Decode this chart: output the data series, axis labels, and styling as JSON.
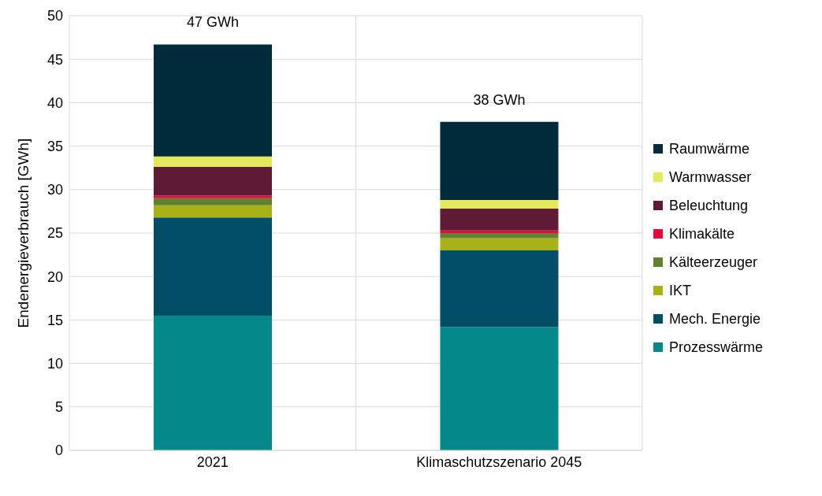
{
  "chart_data": {
    "type": "bar",
    "stacked": true,
    "ylabel": "Endenergieverbrauch [GWh]",
    "categories": [
      "2021",
      "Klimaschutzszenario 2045"
    ],
    "series": [
      {
        "name": "Prozesswärme",
        "color": "#05888a",
        "values": [
          15.5,
          14.2
        ]
      },
      {
        "name": "Mech. Energie",
        "color": "#014d66",
        "values": [
          11.3,
          8.8
        ]
      },
      {
        "name": "IKT",
        "color": "#a8b216",
        "values": [
          1.4,
          1.4
        ]
      },
      {
        "name": "Kälteerzeuger",
        "color": "#62802f",
        "values": [
          0.8,
          0.6
        ]
      },
      {
        "name": "Klimakälte",
        "color": "#e8083e",
        "values": [
          0.3,
          0.3
        ]
      },
      {
        "name": "Beleuchtung",
        "color": "#5f1a36",
        "values": [
          3.3,
          2.5
        ]
      },
      {
        "name": "Warmwasser",
        "color": "#e3e95a",
        "values": [
          1.2,
          1.0
        ]
      },
      {
        "name": "Raumwärme",
        "color": "#002b3b",
        "values": [
          12.9,
          9.0
        ]
      }
    ],
    "totals": [
      "47 GWh",
      "38 GWh"
    ],
    "ylim": [
      0,
      50
    ],
    "yticks": [
      0,
      5,
      10,
      15,
      20,
      25,
      30,
      35,
      40,
      45,
      50
    ],
    "grid": true,
    "legend": "right"
  }
}
